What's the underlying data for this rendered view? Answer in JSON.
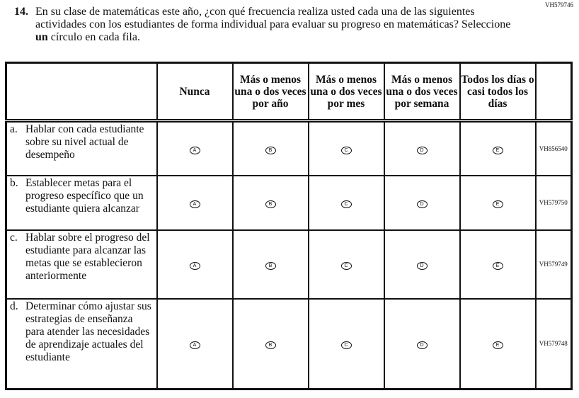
{
  "question": {
    "id": "VH579746",
    "number": "14.",
    "text_before": "En su clase de matemáticas este año, ¿con qué frecuencia realiza usted cada una de las siguientes actividades con los estudiantes de forma individual para evaluar su progreso en matemáticas? Seleccione ",
    "text_bold": "un",
    "text_after": " círculo en cada fila."
  },
  "columns": [
    "Nunca",
    "Más o menos una o dos veces por año",
    "Más o menos una o dos veces por mes",
    "Más o menos una o dos veces por semana",
    "Todos los días o casi todos los días"
  ],
  "bubbles": [
    "A",
    "B",
    "C",
    "D",
    "E"
  ],
  "rows": [
    {
      "letter": "a.",
      "text": "Hablar con cada estudiante sobre su nivel actual de desempeño",
      "id": "VH856540"
    },
    {
      "letter": "b.",
      "text": "Establecer metas para el progreso específico que un estudiante quiera alcanzar",
      "id": "VH579750"
    },
    {
      "letter": "c.",
      "text": "Hablar sobre el progreso del estudiante para alcanzar las metas que se establecieron anteriormente",
      "id": "VH579749"
    },
    {
      "letter": "d.",
      "text": "Determinar cómo ajustar sus estrategias de enseñanza para atender las necesidades de aprendizaje actuales del estudiante",
      "id": "VH579748"
    }
  ]
}
